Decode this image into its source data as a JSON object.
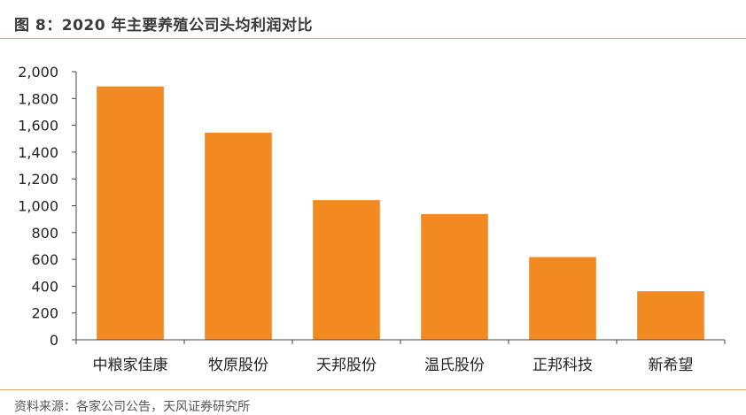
{
  "figure": {
    "title": "图 8：2020 年主要养殖公司头均利润对比",
    "source": "资料来源：各家公司公告，天风证券研究所"
  },
  "chart_data": {
    "type": "bar",
    "title": "",
    "xlabel": "",
    "ylabel": "",
    "categories": [
      "中粮家佳康",
      "牧原股份",
      "天邦股份",
      "温氏股份",
      "正邦科技",
      "新希望"
    ],
    "values": [
      1890,
      1545,
      1042,
      938,
      617,
      362
    ],
    "ylim": [
      0,
      2000
    ],
    "yticks": [
      0,
      200,
      400,
      600,
      800,
      1000,
      1200,
      1400,
      1600,
      1800,
      2000
    ],
    "ytick_labels": [
      "0",
      "200",
      "400",
      "600",
      "800",
      "1,000",
      "1,200",
      "1,400",
      "1,600",
      "1,800",
      "2,000"
    ],
    "bar_color": "#f38a21",
    "grid": false,
    "legend": "none"
  }
}
